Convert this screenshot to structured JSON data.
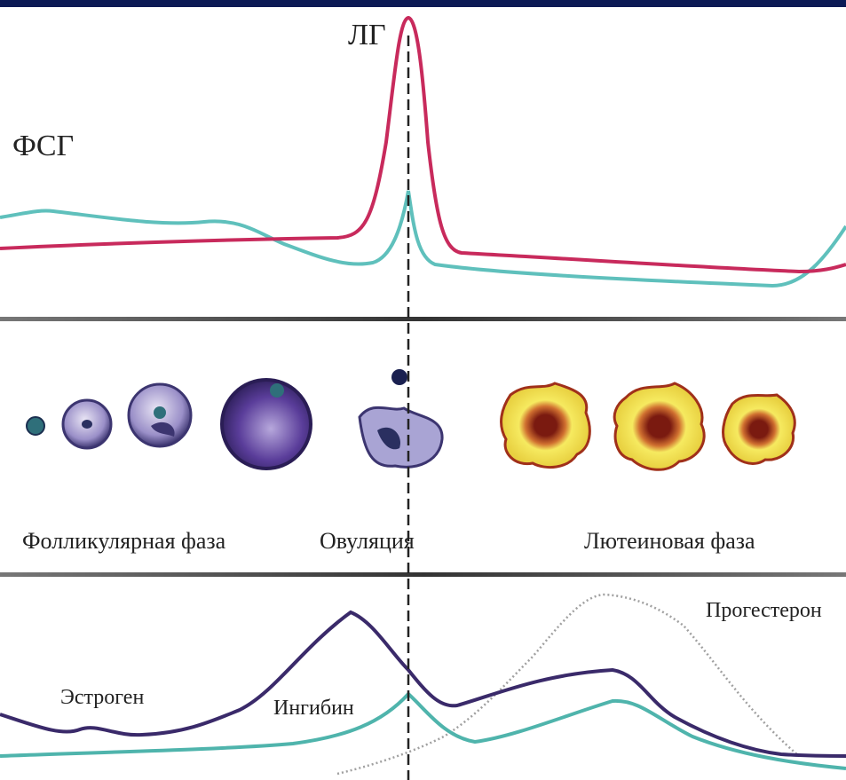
{
  "hormones_top": {
    "lh": "ЛГ",
    "fsh": "ФСГ"
  },
  "phases": {
    "follicular": "Фолликулярная фаза",
    "ovulation": "Овуляция",
    "luteal": "Лютеиновая фаза"
  },
  "hormones_bottom": {
    "progesterone": "Прогестерон",
    "estrogen": "Эстроген",
    "inhibin": "Ингибин"
  }
}
